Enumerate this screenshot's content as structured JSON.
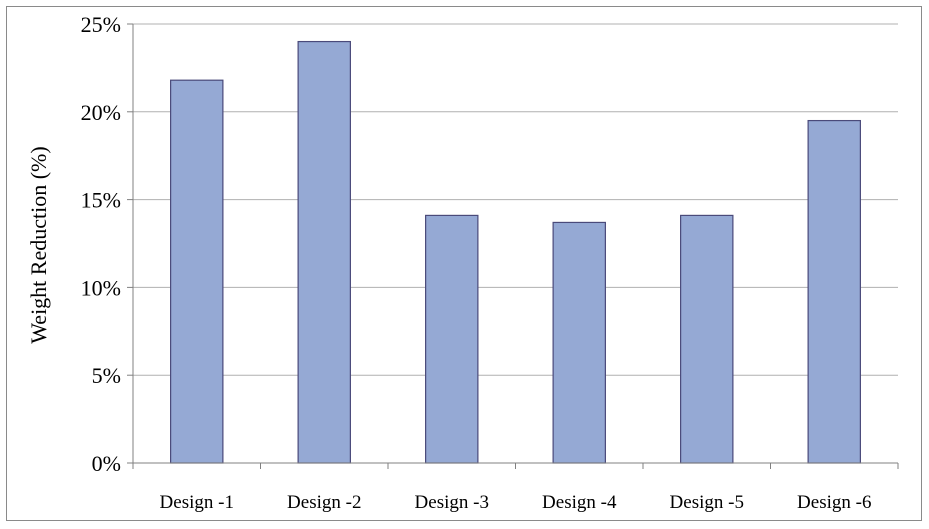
{
  "chart_data": {
    "type": "bar",
    "categories": [
      "Design -1",
      "Design -2",
      "Design -3",
      "Design -4",
      "Design -5",
      "Design -6"
    ],
    "values": [
      21.8,
      24.0,
      14.1,
      13.7,
      14.1,
      19.5
    ],
    "ylabel": "Weight Reduction (%)",
    "xlabel": "",
    "ylim": [
      0,
      25
    ],
    "yticks": [
      0,
      5,
      10,
      15,
      20,
      25
    ],
    "ytick_suffix": "%",
    "grid": true,
    "bar_color": "#95a9d4",
    "bar_edge_color": "#4a4a7a",
    "grid_color": "#b0b0b0",
    "axis_color": "#808080"
  }
}
